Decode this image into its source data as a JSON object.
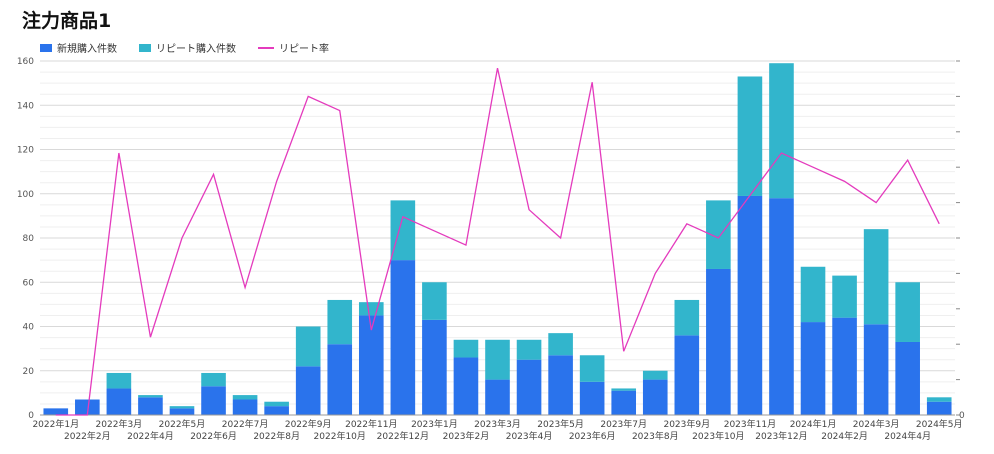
{
  "title": "注力商品1",
  "chart_data": {
    "type": "bar",
    "stacked": true,
    "categories": [
      "2022年1月",
      "2022年2月",
      "2022年3月",
      "2022年4月",
      "2022年5月",
      "2022年6月",
      "2022年7月",
      "2022年8月",
      "2022年9月",
      "2022年10月",
      "2022年11月",
      "2022年12月",
      "2023年1月",
      "2023年2月",
      "2023年3月",
      "2023年4月",
      "2023年5月",
      "2023年6月",
      "2023年7月",
      "2023年8月",
      "2023年9月",
      "2023年10月",
      "2023年11月",
      "2023年12月",
      "2024年1月",
      "2024年2月",
      "2024年3月",
      "2024年4月",
      "2024年5月"
    ],
    "series": [
      {
        "name": "新規購入件数",
        "type": "bar",
        "color": "#2a73ec",
        "values": [
          3,
          7,
          12,
          8,
          3,
          13,
          7,
          4,
          22,
          32,
          45,
          70,
          43,
          26,
          16,
          25,
          27,
          15,
          11,
          16,
          36,
          66,
          99,
          98,
          42,
          44,
          41,
          33,
          6
        ]
      },
      {
        "name": "リピート購入件数",
        "type": "bar",
        "color": "#32b5cc",
        "values": [
          0,
          0,
          7,
          1,
          1,
          6,
          2,
          2,
          18,
          20,
          6,
          27,
          17,
          8,
          18,
          9,
          10,
          12,
          1,
          4,
          16,
          31,
          54,
          61,
          25,
          19,
          43,
          27,
          2
        ]
      },
      {
        "name": "リピート率",
        "type": "line",
        "color": "#e43bbd",
        "axis": "right",
        "values": [
          0,
          0,
          0.37,
          0.11,
          0.25,
          0.34,
          0.18,
          0.33,
          0.45,
          0.43,
          0.12,
          0.28,
          0.26,
          0.24,
          0.49,
          0.29,
          0.25,
          0.47,
          0.09,
          0.2,
          0.27,
          0.25,
          0.31,
          0.37,
          0.35,
          0.33,
          0.3,
          0.36,
          0.27
        ]
      }
    ],
    "yticks": [
      "0",
      "20",
      "40",
      "60",
      "80",
      "100",
      "120",
      "140",
      "160"
    ],
    "ylim": [
      0,
      160
    ],
    "y2lim": [
      0,
      0.5
    ],
    "y2ticks": [
      "0",
      "",
      "",
      "",
      "",
      "",
      "",
      "",
      "",
      "",
      ""
    ],
    "legend": "top-left",
    "grid": true
  }
}
